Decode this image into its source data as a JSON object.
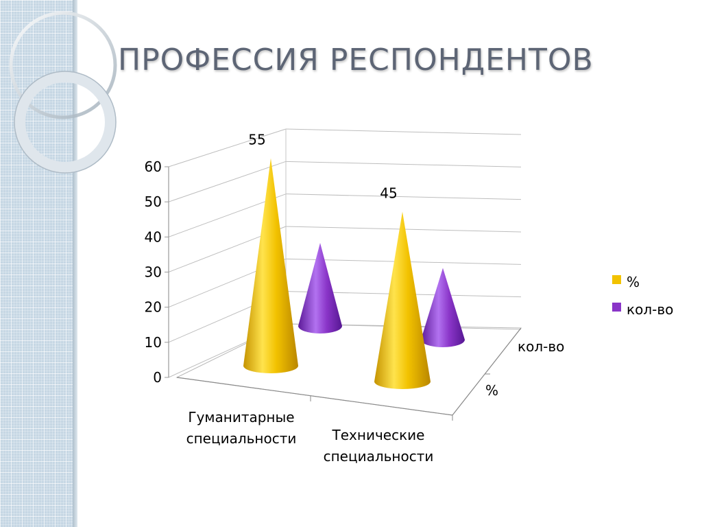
{
  "slide": {
    "title": "ПРОФЕССИЯ РЕСПОНДЕНТОВ"
  },
  "colors": {
    "series_gold": "#f2c200",
    "series_purple": "#8a35c8",
    "title": "#5d6575",
    "sidebar": "#c6d7e4"
  },
  "chart_data": {
    "type": "bar",
    "style": "3d-cone",
    "categories": [
      "Гуманитарные специальности",
      "Технические специальности"
    ],
    "category_lines": [
      [
        "Гуманитарные",
        "специальности"
      ],
      [
        "Технические",
        "специальности"
      ]
    ],
    "series": [
      {
        "name": "%",
        "values": [
          55,
          45
        ],
        "color": "#f2c200",
        "data_labels": [
          "55",
          "45"
        ]
      },
      {
        "name": "кол-во",
        "values": [
          22,
          19
        ],
        "color": "#8a35c8"
      }
    ],
    "depth_labels": [
      "кол-во",
      "%"
    ],
    "yticks": [
      "0",
      "10",
      "20",
      "30",
      "40",
      "50",
      "60"
    ],
    "ylim": [
      0,
      60
    ],
    "grid": true,
    "legend": "right"
  }
}
